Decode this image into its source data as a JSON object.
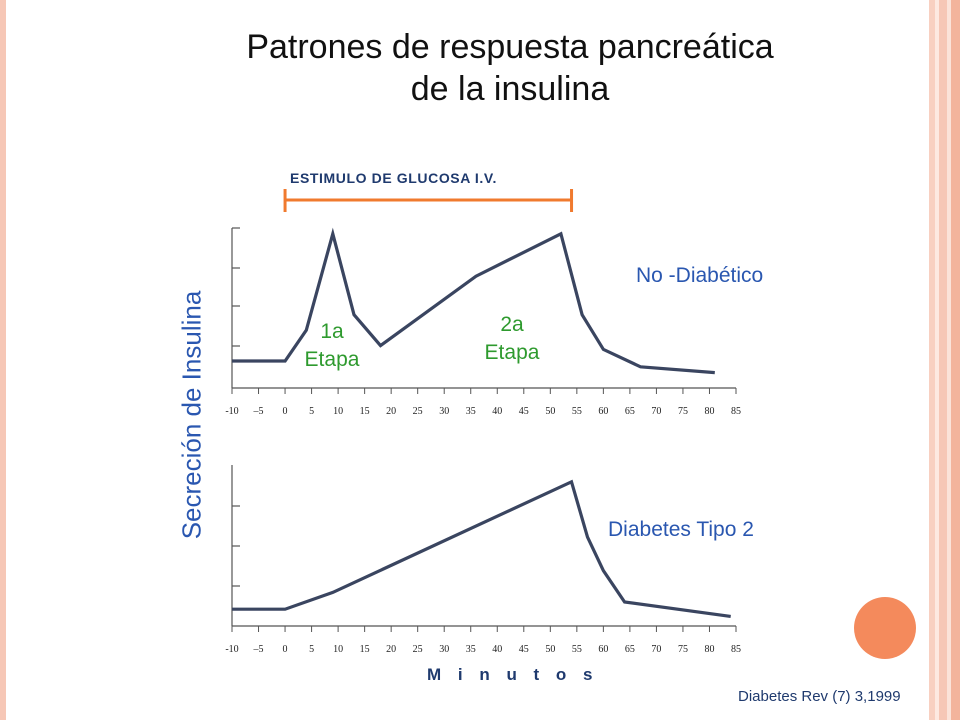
{
  "title": "Patrones de respuesta pancreática\nde la insulina",
  "stimulus_label": "ESTIMULO DE GLUCOSA I.V.",
  "ylabel": "Secreción de Insulina",
  "xlabel": "M i n u t o s",
  "citation": "Diabetes Rev (7) 3,1999",
  "colors": {
    "curve": "#3a4560",
    "stimulus_bracket": "#f07a2e",
    "label_blue": "#2a57b0",
    "stage_green": "#2e9a2e",
    "accent_circle": "#f48a5c"
  },
  "chart_data": [
    {
      "type": "line",
      "name": "No -Diabético",
      "curve_label": "No -Diabético",
      "stage_labels": [
        "1a\nEtapa",
        "2a\nEtapa"
      ],
      "x_tick_labels": [
        "-10",
        "–5",
        "0",
        "5",
        "10",
        "15",
        "20",
        "25",
        "30",
        "35",
        "40",
        "45",
        "50",
        "55",
        "60",
        "65",
        "70",
        "75",
        "80",
        "85"
      ],
      "x": [
        -10,
        0,
        4,
        9,
        13,
        18,
        36,
        52,
        56,
        60,
        67,
        81
      ],
      "y": [
        1.4,
        1.4,
        3.0,
        8.0,
        3.8,
        2.2,
        5.8,
        8.0,
        3.8,
        2.0,
        1.1,
        0.8
      ],
      "xlim": [
        -10,
        85
      ],
      "ylim": [
        0,
        8.3
      ],
      "stimulus_range": [
        0,
        54
      ]
    },
    {
      "type": "line",
      "name": "Diabetes Tipo 2",
      "curve_label": "Diabetes Tipo 2",
      "x_tick_labels": [
        "-10",
        "–5",
        "0",
        "5",
        "10",
        "15",
        "20",
        "25",
        "30",
        "35",
        "40",
        "45",
        "50",
        "55",
        "60",
        "65",
        "70",
        "75",
        "80",
        "85"
      ],
      "x": [
        -10,
        0,
        9,
        54,
        57,
        60,
        64,
        84
      ],
      "y": [
        0.0,
        0.0,
        0.7,
        5.3,
        3.0,
        1.6,
        0.3,
        -0.3
      ],
      "xlim": [
        -10,
        85
      ],
      "ylim": [
        -0.7,
        6.0
      ]
    }
  ]
}
